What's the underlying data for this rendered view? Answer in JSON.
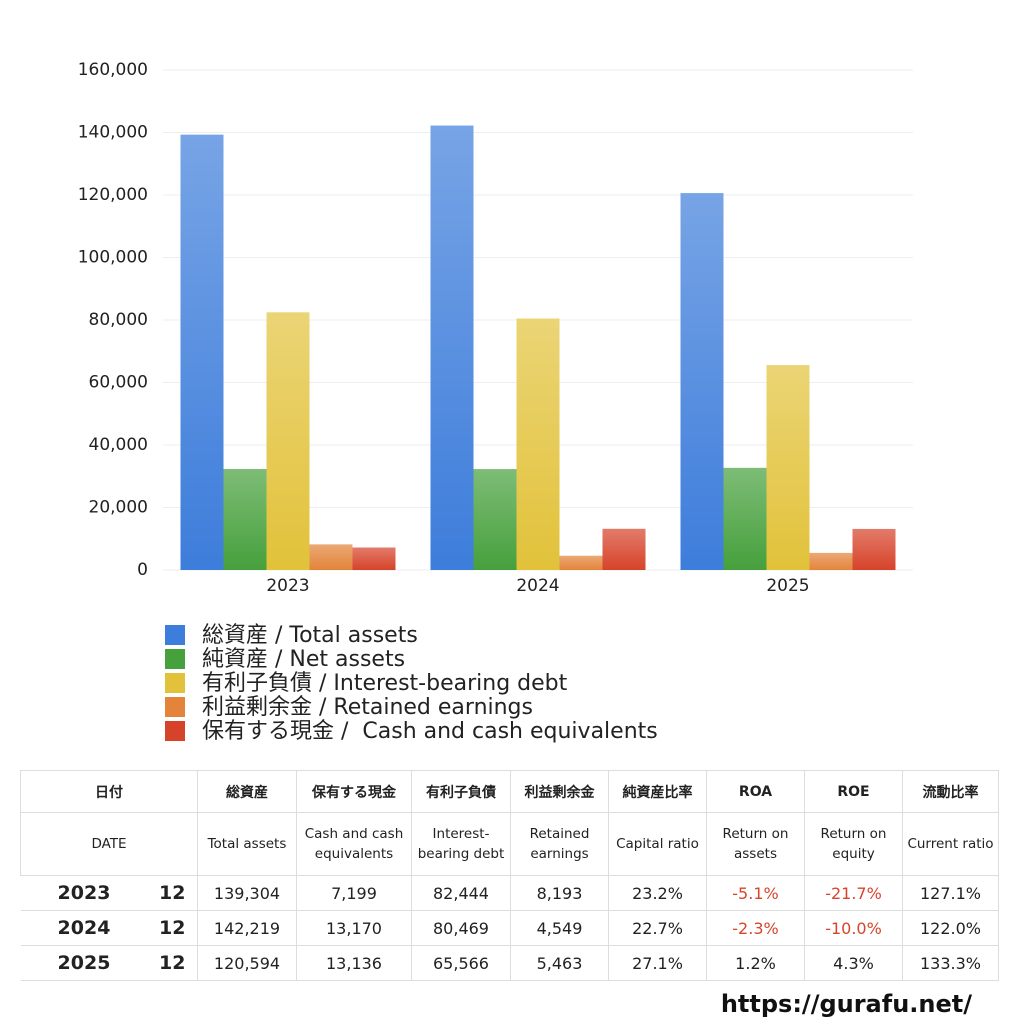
{
  "chart_data": {
    "type": "bar",
    "categories": [
      "2023",
      "2024",
      "2025"
    ],
    "series": [
      {
        "name": "総資産 / Total assets",
        "color": "#3d7ddb",
        "values": [
          139304,
          142219,
          120594
        ]
      },
      {
        "name": "純資産 / Net assets",
        "color": "#46a03c",
        "values": [
          32318,
          32284,
          32681
        ]
      },
      {
        "name": "有利子負債 / Interest-bearing debt",
        "color": "#e2c23a",
        "values": [
          82444,
          80469,
          65566
        ]
      },
      {
        "name": "利益剰余金 / Retained earnings",
        "color": "#e3843a",
        "values": [
          8193,
          4549,
          5463
        ]
      },
      {
        "name": "保有する現金 /  Cash and cash equivalents",
        "color": "#d6432a",
        "values": [
          7199,
          13170,
          13136
        ]
      }
    ],
    "ylim": [
      0,
      160000
    ],
    "yticks": [
      0,
      {
        "value": 20000,
        "label": "20,000"
      },
      {
        "value": 40000,
        "label": "40,000"
      },
      {
        "value": 60000,
        "label": "60,000"
      },
      {
        "value": 80000,
        "label": "80,000"
      },
      {
        "value": 100000,
        "label": "100,000"
      },
      {
        "value": 120000,
        "label": "120,000"
      },
      {
        "value": 140000,
        "label": "140,000"
      },
      {
        "value": 160000,
        "label": "160,000"
      }
    ],
    "grid": true
  },
  "table": {
    "negative_color": "#d9442b",
    "header": [
      [
        "日付",
        "総資産",
        "保有する現金",
        "有利子負債",
        "利益剰余金",
        "純資産比率",
        "ROA",
        "ROE",
        "流動比率"
      ],
      [
        "DATE",
        "Total assets",
        "Cash and cash equivalents",
        "Interest-bearing debt",
        "Retained earnings",
        "Capital ratio",
        "Return on assets",
        "Return on equity",
        "Current ratio"
      ]
    ],
    "rows": [
      [
        "2023",
        "12",
        "139,304",
        "7,199",
        "82,444",
        "8,193",
        "23.2%",
        "-5.1%",
        "-21.7%",
        "127.1%"
      ],
      [
        "2024",
        "12",
        "142,219",
        "13,170",
        "80,469",
        "4,549",
        "22.7%",
        "-2.3%",
        "-10.0%",
        "122.0%"
      ],
      [
        "2025",
        "12",
        "120,594",
        "13,136",
        "65,566",
        "5,463",
        "27.1%",
        "1.2%",
        "4.3%",
        "133.3%"
      ]
    ]
  },
  "footer": "https://gurafu.net/"
}
